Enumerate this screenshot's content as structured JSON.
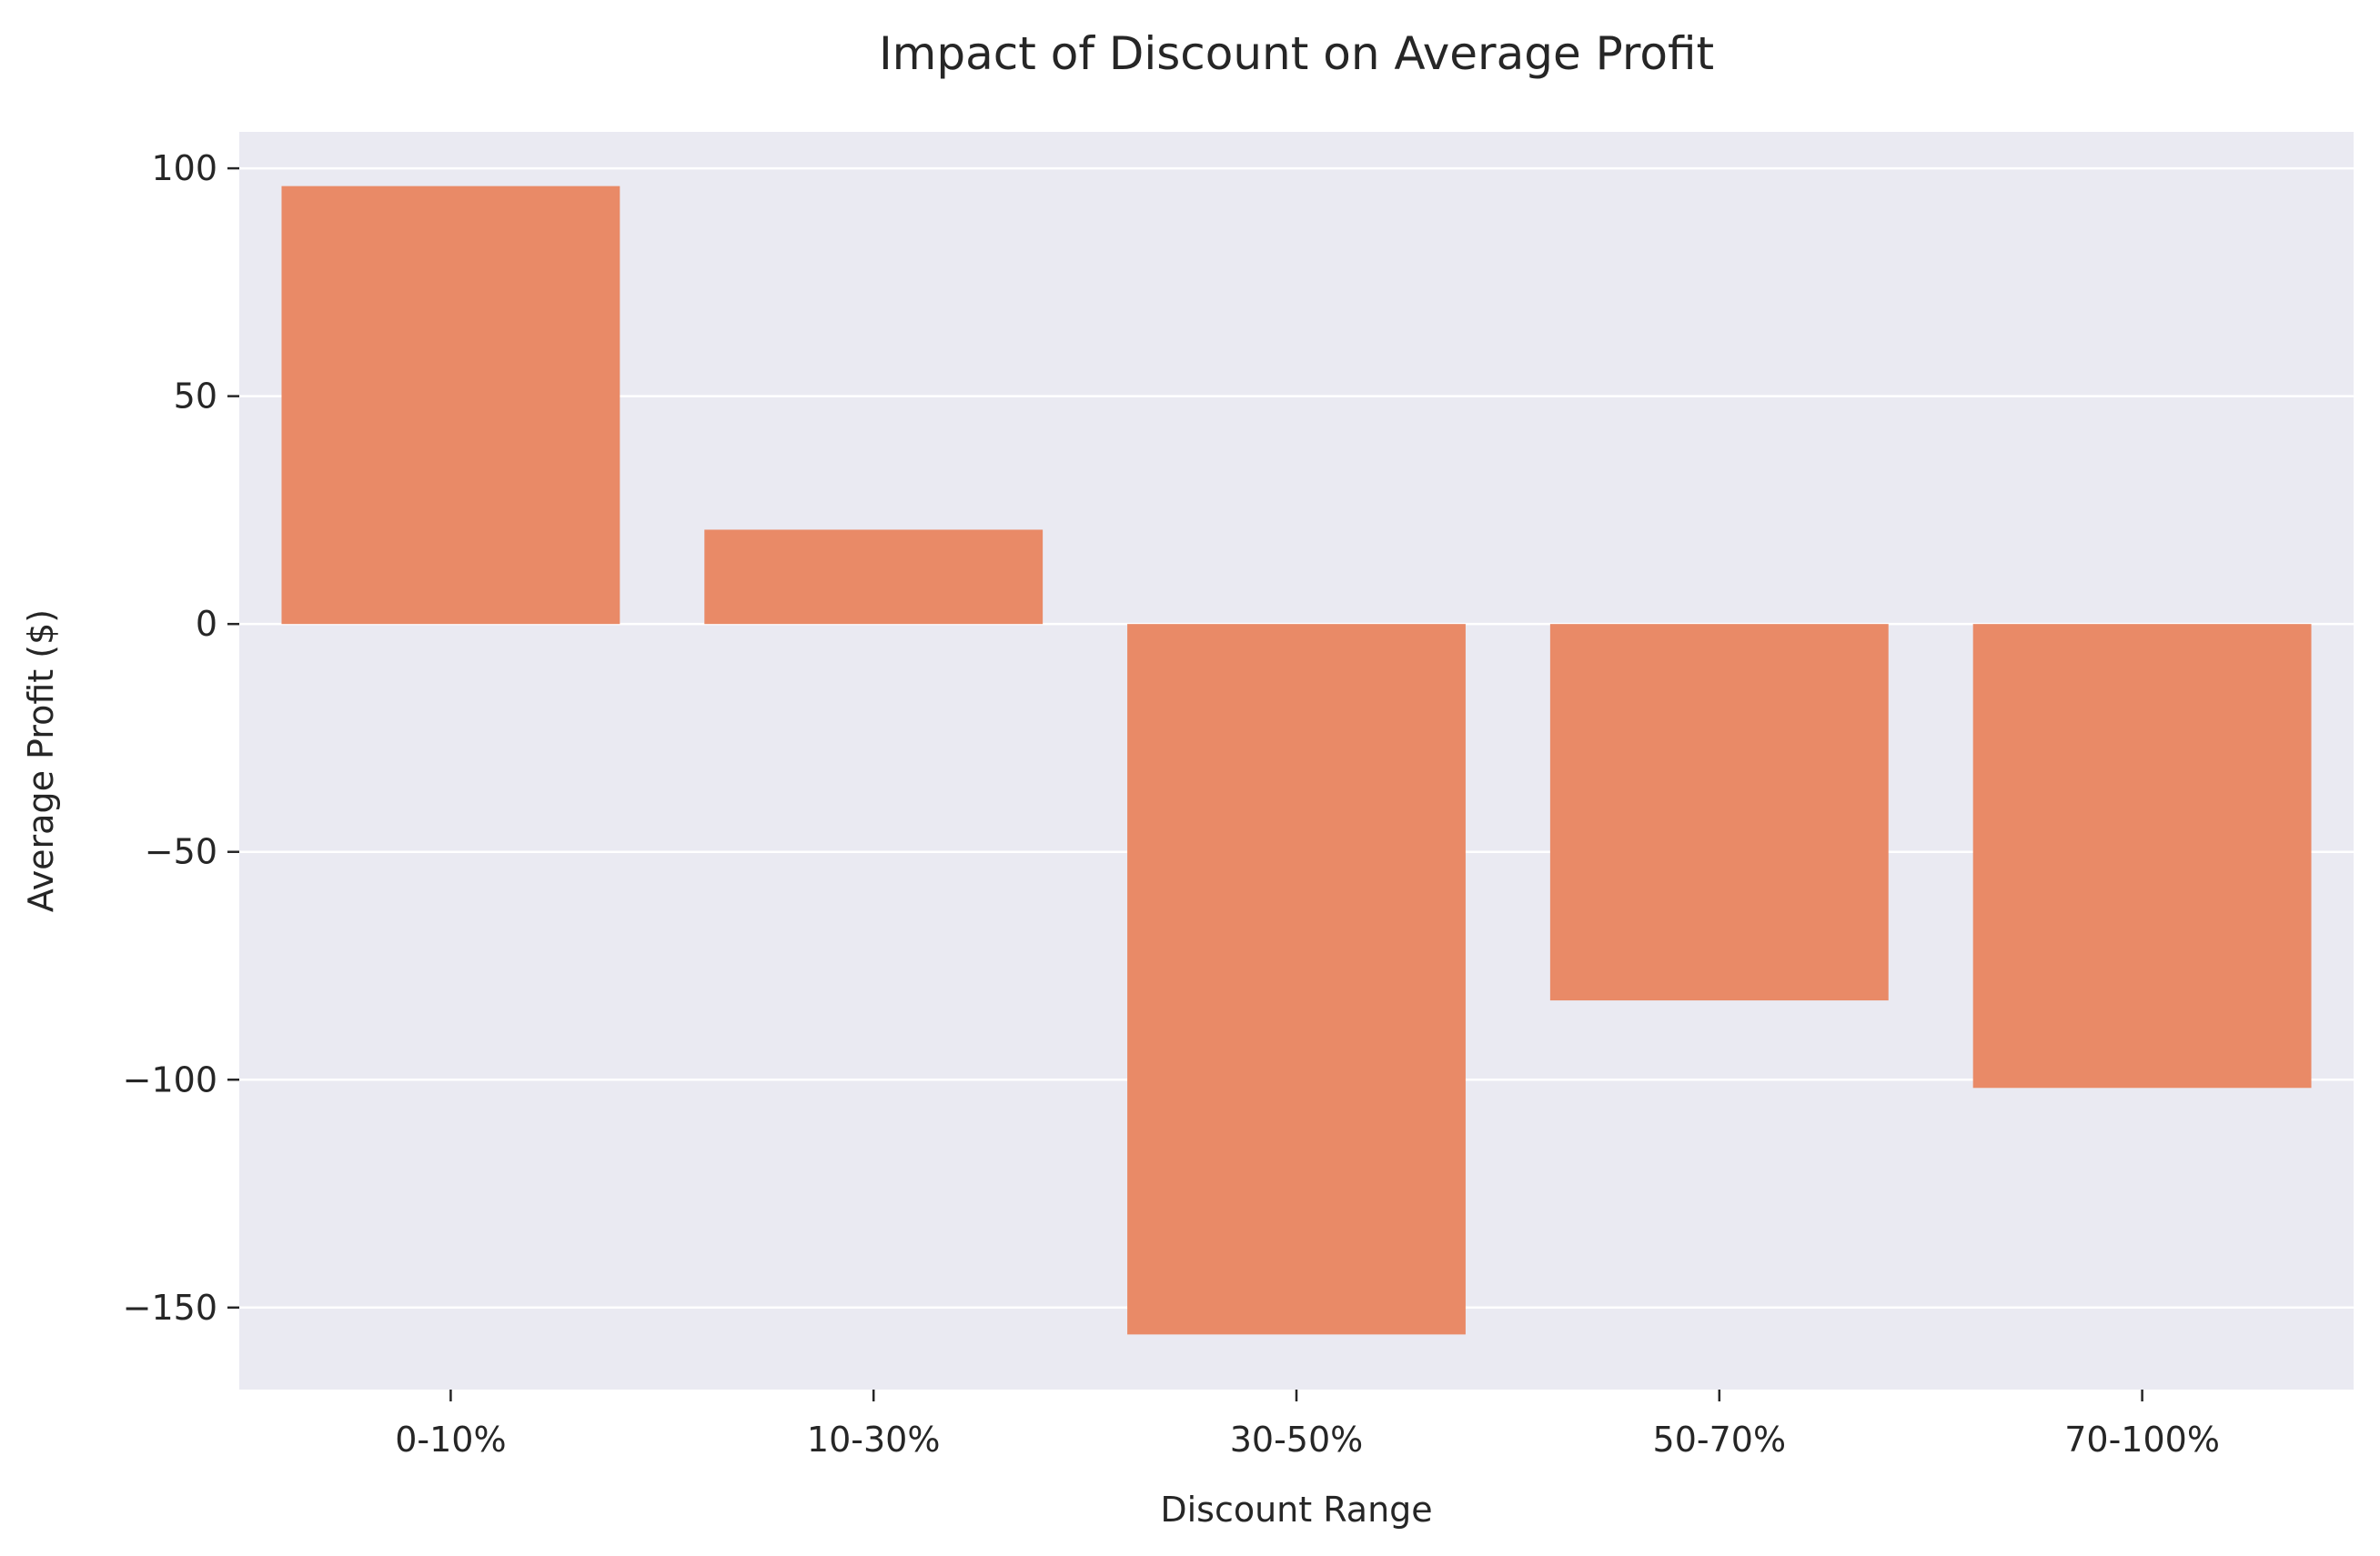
{
  "chart_data": {
    "type": "bar",
    "title": "Impact of Discount on Average Profit",
    "xlabel": "Discount Range",
    "ylabel": "Average Profit ($)",
    "categories": [
      "0-10%",
      "10-30%",
      "30-50%",
      "50-70%",
      "70-100%"
    ],
    "values": [
      96.1,
      20.7,
      -155.9,
      -82.6,
      -101.8
    ],
    "ylim": [
      -168,
      108
    ],
    "yticks": [
      100,
      50,
      0,
      -50,
      -100,
      -150
    ],
    "ytick_labels": [
      "100",
      "50",
      "0",
      "−50",
      "−100",
      "−150"
    ],
    "grid": true,
    "legend": "none",
    "colors": {
      "bar": "#e98a67",
      "plot_background": "#eaeaf2",
      "grid": "#ffffff",
      "text": "#262626"
    }
  }
}
